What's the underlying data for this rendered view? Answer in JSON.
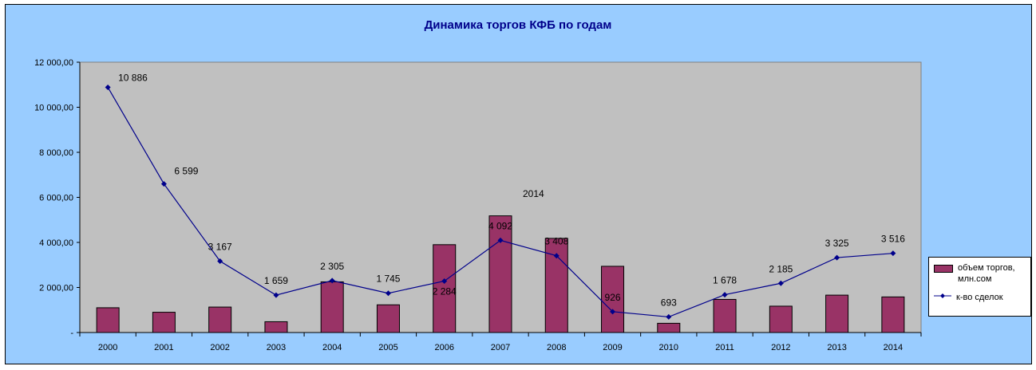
{
  "chart_data": {
    "type": "bar",
    "title": "Динамика торгов КФБ по годам",
    "annotation": "2014",
    "categories": [
      "2000",
      "2001",
      "2002",
      "2003",
      "2004",
      "2005",
      "2006",
      "2007",
      "2008",
      "2009",
      "2010",
      "2011",
      "2012",
      "2013",
      "2014"
    ],
    "ylim": [
      0,
      12000
    ],
    "y_ticks": [
      "-",
      "2 000,00",
      "4 000,00",
      "6 000,00",
      "8 000,00",
      "10 000,00",
      "12 000,00"
    ],
    "y_tick_values": [
      0,
      2000,
      4000,
      6000,
      8000,
      10000,
      12000
    ],
    "grid": false,
    "legend_position": "right",
    "series": [
      {
        "name": "объем торгов, млн.сом",
        "type": "bar",
        "color": "#993366",
        "values": [
          1100,
          900,
          1130,
          480,
          2250,
          1230,
          3900,
          5180,
          4180,
          2940,
          410,
          1470,
          1170,
          1660,
          1580
        ]
      },
      {
        "name": "к-во сделок",
        "type": "line",
        "color": "#00008b",
        "values": [
          10886,
          6599,
          3167,
          1659,
          2305,
          1745,
          2284,
          4092,
          3408,
          926,
          693,
          1678,
          2185,
          3325,
          3516
        ],
        "labels": [
          "10 886",
          "6 599",
          "3 167",
          "1 659",
          "2 305",
          "1 745",
          "2 284",
          "4 092",
          "3 408",
          "926",
          "693",
          "1 678",
          "2 185",
          "3 325",
          "3 516"
        ]
      }
    ],
    "colors": {
      "frame_bg": "#99ccff",
      "plot_bg": "#c0c0c0",
      "title": "#00008b"
    }
  }
}
